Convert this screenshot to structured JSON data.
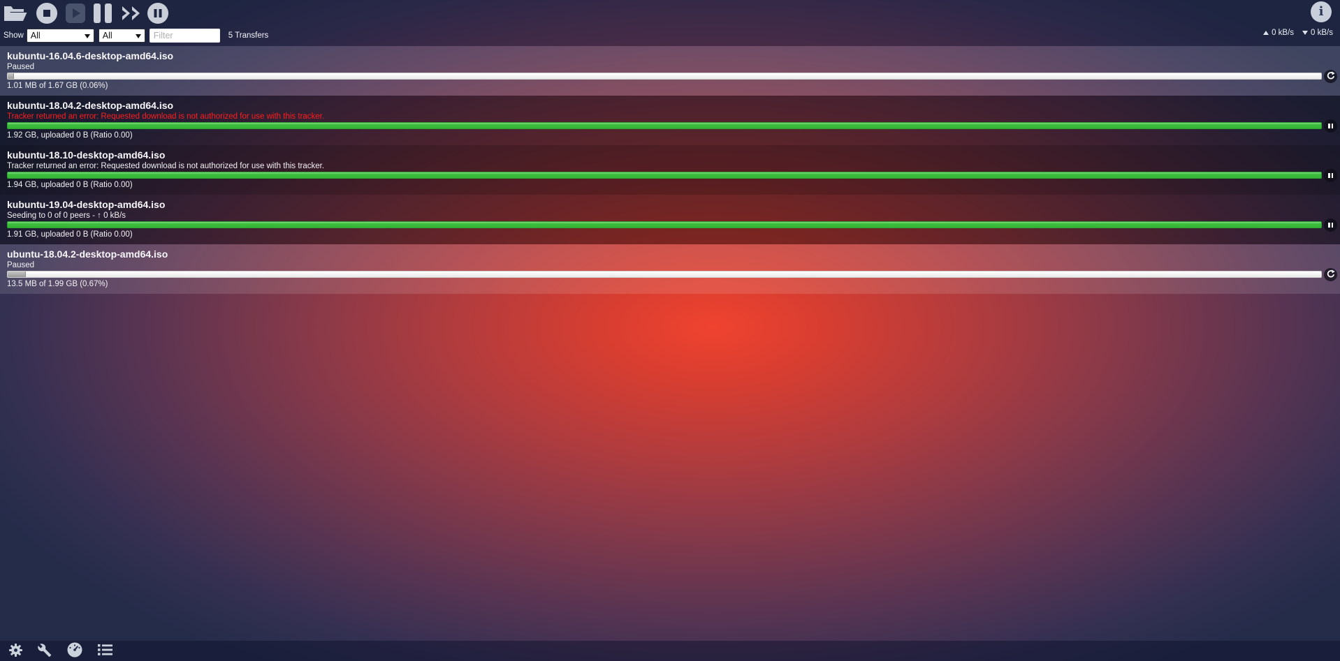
{
  "colors": {
    "progress_green": "#3dbd3d",
    "error_red": "#ff1e1e",
    "icon_light": "#c9ced9",
    "wallpaper_center_red": "#e8422f",
    "wallpaper_edge_navy": "#252c4a"
  },
  "toolbar": {
    "buttons": [
      {
        "icon": "open-folder-icon",
        "action": "open-torrent"
      },
      {
        "icon": "remove-icon",
        "action": "remove-torrent"
      },
      {
        "icon": "play-icon",
        "action": "start-torrent",
        "disabled": true
      },
      {
        "icon": "pause-icon",
        "action": "pause-torrent"
      },
      {
        "icon": "start-all-icon",
        "action": "start-all"
      },
      {
        "icon": "pause-all-icon",
        "action": "pause-all"
      }
    ]
  },
  "filter_bar": {
    "show_label": "Show",
    "status_filter": {
      "value": "All"
    },
    "tracker_filter": {
      "value": "All"
    },
    "filter_input": {
      "placeholder": "Filter",
      "value": ""
    },
    "transfer_count": "5 Transfers"
  },
  "speed_summary": {
    "upload": "0 kB/s",
    "download": "0 kB/s"
  },
  "torrents": [
    {
      "name": "kubuntu-16.04.6-desktop-amd64.iso",
      "status": "Paused",
      "status_error": false,
      "stats": "1.01 MB of 1.67 GB (0.06%)",
      "progress_percent": 0.06,
      "bar_fill_pct": 0.5,
      "state": "paused",
      "action": "resume"
    },
    {
      "name": "kubuntu-18.04.2-desktop-amd64.iso",
      "status": "Tracker returned an error: Requested download is not authorized for use with this tracker.",
      "status_error": true,
      "stats": "1.92 GB, uploaded 0 B (Ratio 0.00)",
      "progress_percent": 100,
      "bar_fill_pct": 100,
      "state": "seeding",
      "action": "pause"
    },
    {
      "name": "kubuntu-18.10-desktop-amd64.iso",
      "status": "Tracker returned an error: Requested download is not authorized for use with this tracker.",
      "status_error": false,
      "stats": "1.94 GB, uploaded 0 B (Ratio 0.00)",
      "progress_percent": 100,
      "bar_fill_pct": 100,
      "state": "seeding",
      "action": "pause"
    },
    {
      "name": "kubuntu-19.04-desktop-amd64.iso",
      "status": "Seeding to 0 of 0 peers - ↑ 0 kB/s",
      "status_error": false,
      "stats": "1.91 GB, uploaded 0 B (Ratio 0.00)",
      "progress_percent": 100,
      "bar_fill_pct": 100,
      "state": "seeding",
      "action": "pause"
    },
    {
      "name": "ubuntu-18.04.2-desktop-amd64.iso",
      "status": "Paused",
      "status_error": false,
      "stats": "13.5 MB of 1.99 GB (0.67%)",
      "progress_percent": 0.67,
      "bar_fill_pct": 1.4,
      "state": "paused",
      "action": "resume"
    }
  ],
  "footer": {
    "icons": [
      "settings-gear-icon",
      "wrench-icon",
      "speed-gauge-icon",
      "list-icon"
    ]
  }
}
